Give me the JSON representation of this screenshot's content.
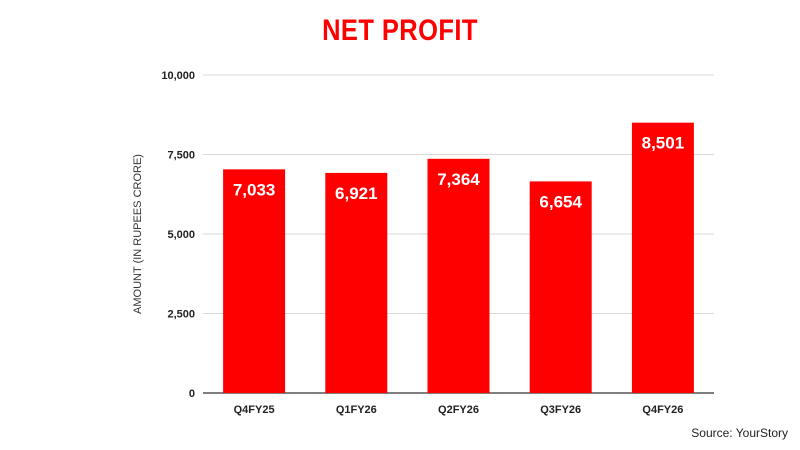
{
  "chart_data": {
    "type": "bar",
    "title": "NET PROFIT",
    "xlabel": "",
    "ylabel": "AMOUNT (IN RUPEES CRORE)",
    "categories": [
      "Q4FY25",
      "Q1FY26",
      "Q2FY26",
      "Q3FY26",
      "Q4FY26"
    ],
    "values": [
      7033,
      6921,
      7364,
      6654,
      8501
    ],
    "data_labels": [
      "7,033",
      "6,921",
      "7,364",
      "6,654",
      "8,501"
    ],
    "ylim": [
      0,
      10000
    ],
    "yticks": [
      0,
      2500,
      5000,
      7500,
      10000
    ],
    "ytick_labels": [
      "0",
      "2,500",
      "5,000",
      "7,500",
      "10,000"
    ],
    "grid": true,
    "legend": "none",
    "bar_color": "#ff0000",
    "title_color": "#ff0000"
  },
  "source": "Source: YourStory"
}
